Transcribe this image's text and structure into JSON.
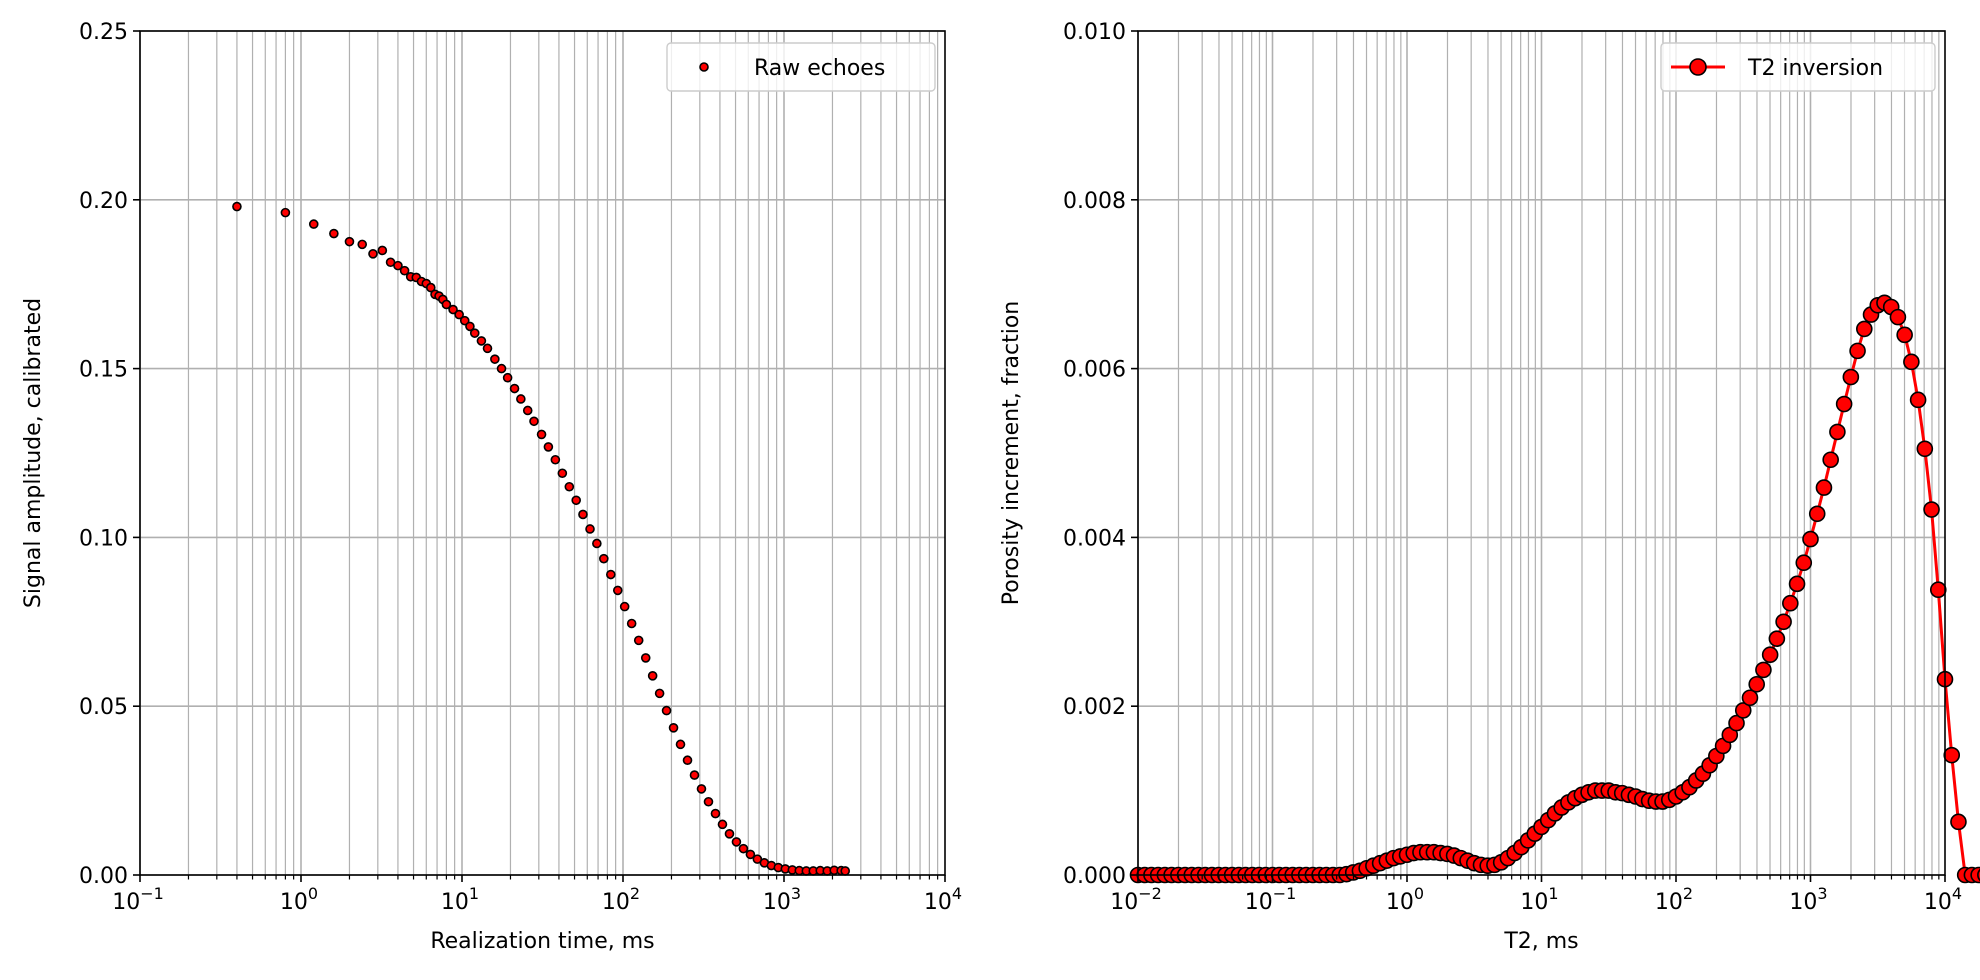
{
  "chart_data": [
    {
      "type": "scatter",
      "xlabel": "Realization time, ms",
      "ylabel": "Signal amplitude, calibrated",
      "xscale": "log",
      "xlim": [
        0.1,
        10000
      ],
      "ylim": [
        0,
        0.25
      ],
      "grid": true,
      "legend": {
        "position": "top-right",
        "entries": [
          "Raw echoes"
        ]
      },
      "x_tick_labels": [
        {
          "base": "10",
          "exp": "−1",
          "value": 0.1
        },
        {
          "base": "10",
          "exp": "0",
          "value": 1
        },
        {
          "base": "10",
          "exp": "1",
          "value": 10
        },
        {
          "base": "10",
          "exp": "2",
          "value": 100
        },
        {
          "base": "10",
          "exp": "3",
          "value": 1000
        },
        {
          "base": "10",
          "exp": "4",
          "value": 10000
        }
      ],
      "y_tick_labels": [
        "0.00",
        "0.05",
        "0.10",
        "0.15",
        "0.20",
        "0.25"
      ],
      "y_ticks": [
        0,
        0.05,
        0.1,
        0.15,
        0.2,
        0.25
      ],
      "series": [
        {
          "name": "Raw echoes",
          "marker_face": "#ff0000",
          "marker_edge": "#000000",
          "x": [
            0.4,
            0.8,
            1.2,
            1.6,
            2.0,
            2.4,
            2.8,
            3.2,
            3.6,
            4.0,
            4.4,
            4.8,
            5.2,
            5.6,
            6.0,
            6.4,
            6.8,
            7.2,
            7.6,
            8.0,
            8.8,
            9.6,
            10.4,
            11.2,
            12.0,
            13.2,
            14.4,
            16.0,
            17.6,
            19.2,
            21.2,
            23.2,
            25.6,
            28.0,
            31.2,
            34.4,
            38.0,
            42.0,
            46.4,
            51.2,
            56.4,
            62.4,
            68.8,
            76.0,
            84.0,
            92.8,
            102.4,
            113.2,
            125.2,
            138.4,
            152.8,
            168.8,
            186.4,
            206.0,
            227.6,
            251.6,
            278.0,
            307.2,
            339.6,
            375.2,
            414.8,
            458.4,
            506.4,
            559.6,
            618.4,
            683.2,
            755.2,
            834.4,
            922.0,
            1018.8,
            1126.0,
            1244.4,
            1375.2,
            1519.6,
            1679.2,
            1855.6,
            2050.4,
            2265.6,
            2400.0
          ],
          "y": [
            0.198,
            0.1962,
            0.1928,
            0.19,
            0.1876,
            0.1868,
            0.184,
            0.185,
            0.1815,
            0.1805,
            0.179,
            0.1772,
            0.177,
            0.1758,
            0.1752,
            0.174,
            0.172,
            0.1715,
            0.1705,
            0.169,
            0.1675,
            0.166,
            0.1642,
            0.1625,
            0.1605,
            0.1582,
            0.156,
            0.1528,
            0.15,
            0.1473,
            0.1441,
            0.141,
            0.1376,
            0.1344,
            0.1305,
            0.1268,
            0.123,
            0.119,
            0.115,
            0.111,
            0.1068,
            0.1025,
            0.0982,
            0.0937,
            0.089,
            0.0843,
            0.0795,
            0.0745,
            0.0695,
            0.0643,
            0.059,
            0.0538,
            0.0487,
            0.0436,
            0.0387,
            0.034,
            0.0296,
            0.0255,
            0.0217,
            0.0182,
            0.015,
            0.0122,
            0.0098,
            0.0078,
            0.0061,
            0.0047,
            0.0036,
            0.0028,
            0.0022,
            0.0018,
            0.0015,
            0.0013,
            0.0012,
            0.0012,
            0.0013,
            0.0012,
            0.0014,
            0.0013,
            0.0012
          ]
        }
      ]
    },
    {
      "type": "line",
      "xlabel": "T2, ms",
      "ylabel": "Porosity increment, fraction",
      "xscale": "log",
      "xlim": [
        0.01,
        10000
      ],
      "ylim": [
        0,
        0.01
      ],
      "grid": true,
      "legend": {
        "position": "top-right",
        "entries": [
          "T2 inversion"
        ]
      },
      "x_tick_labels": [
        {
          "base": "10",
          "exp": "−2",
          "value": 0.01
        },
        {
          "base": "10",
          "exp": "−1",
          "value": 0.1
        },
        {
          "base": "10",
          "exp": "0",
          "value": 1
        },
        {
          "base": "10",
          "exp": "1",
          "value": 10
        },
        {
          "base": "10",
          "exp": "2",
          "value": 100
        },
        {
          "base": "10",
          "exp": "3",
          "value": 1000
        },
        {
          "base": "10",
          "exp": "4",
          "value": 10000
        }
      ],
      "y_tick_labels": [
        "0.000",
        "0.002",
        "0.004",
        "0.006",
        "0.008",
        "0.010"
      ],
      "y_ticks": [
        0,
        0.002,
        0.004,
        0.006,
        0.008,
        0.01
      ],
      "series": [
        {
          "name": "T2 inversion",
          "line_color": "#ff0000",
          "marker_face": "#ff0000",
          "marker_edge": "#000000",
          "log10_x_start": -2,
          "log10_x_step": 0.05,
          "y": [
            0,
            0,
            0,
            0,
            0,
            0,
            0,
            0,
            0,
            0,
            0,
            0,
            0,
            0,
            0,
            0,
            0,
            0,
            0,
            0,
            0,
            0,
            0,
            0,
            0,
            0,
            0,
            0,
            0,
            0,
            0,
            1e-05,
            3e-05,
            5e-05,
            8e-05,
            0.00011,
            0.00014,
            0.00017,
            0.0002,
            0.00022,
            0.00024,
            0.00026,
            0.00027,
            0.00027,
            0.00027,
            0.00026,
            0.00025,
            0.00023,
            0.0002,
            0.00017,
            0.00014,
            0.00012,
            0.00011,
            0.00012,
            0.00015,
            0.0002,
            0.00026,
            0.00033,
            0.00041,
            0.00049,
            0.00057,
            0.00065,
            0.00073,
            0.0008,
            0.00086,
            0.00091,
            0.00095,
            0.00098,
            0.001,
            0.001,
            0.001,
            0.00098,
            0.00097,
            0.00095,
            0.00093,
            0.0009,
            0.00088,
            0.00087,
            0.00087,
            0.00089,
            0.00093,
            0.00098,
            0.00104,
            0.00112,
            0.0012,
            0.0013,
            0.00141,
            0.00153,
            0.00166,
            0.0018,
            0.00195,
            0.0021,
            0.00226,
            0.00243,
            0.00261,
            0.0028,
            0.003,
            0.00322,
            0.00345,
            0.0037,
            0.00398,
            0.00428,
            0.00459,
            0.00492,
            0.00525,
            0.00558,
            0.0059,
            0.00621,
            0.00647,
            0.00664,
            0.00675,
            0.00678,
            0.00673,
            0.00661,
            0.0064,
            0.00608,
            0.00563,
            0.00505,
            0.00433,
            0.00338,
            0.00232,
            0.00142,
            0.00063,
            0,
            0,
            0,
            0,
            0,
            0,
            0,
            0,
            0,
            0,
            0,
            0,
            0,
            0,
            0,
            0,
            0,
            0,
            0,
            0,
            0,
            0,
            0,
            0,
            0,
            0,
            0,
            0,
            0,
            3e-05
          ]
        }
      ]
    }
  ]
}
